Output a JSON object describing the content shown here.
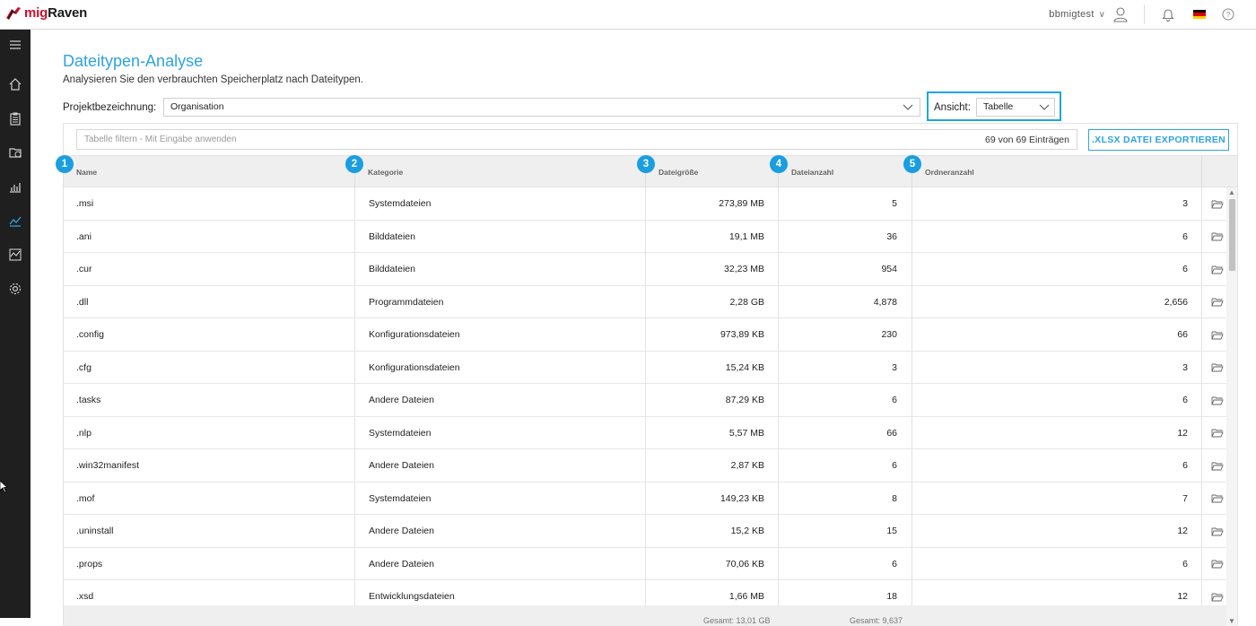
{
  "app": {
    "brand_prefix": "mig",
    "brand_suffix": "Raven"
  },
  "user": {
    "name": "bbmigtest",
    "caret": "∨"
  },
  "page": {
    "title": "Dateitypen-Analyse",
    "subtitle": "Analysieren Sie den verbrauchten Speicherplatz nach Dateitypen."
  },
  "project": {
    "label": "Projektbezeichnung:",
    "value": "Organisation"
  },
  "view": {
    "label": "Ansicht:",
    "value": "Tabelle"
  },
  "table": {
    "filter_placeholder": "Tabelle filtern - Mit Eingabe anwenden",
    "entries": "69 von 69 Einträgen",
    "export_label": ".XLSX DATEI EXPORTIEREN",
    "columns": [
      {
        "badge": "1",
        "label": "Name"
      },
      {
        "badge": "2",
        "label": "Kategorie"
      },
      {
        "badge": "3",
        "label": "Dateigröße"
      },
      {
        "badge": "4",
        "label": "Dateianzahl"
      },
      {
        "badge": "5",
        "label": "Ordneranzahl"
      }
    ],
    "rows": [
      {
        "name": ".msi",
        "kategorie": "Systemdateien",
        "size": "273,89 MB",
        "anzahl": "5",
        "ordner": "3"
      },
      {
        "name": ".ani",
        "kategorie": "Bilddateien",
        "size": "19,1 MB",
        "anzahl": "36",
        "ordner": "6"
      },
      {
        "name": ".cur",
        "kategorie": "Bilddateien",
        "size": "32,23 MB",
        "anzahl": "954",
        "ordner": "6"
      },
      {
        "name": ".dll",
        "kategorie": "Programmdateien",
        "size": "2,28  GB",
        "anzahl": "4,878",
        "ordner": "2,656"
      },
      {
        "name": ".config",
        "kategorie": "Konfigurationsdateien",
        "size": "973,89  KB",
        "anzahl": "230",
        "ordner": "66"
      },
      {
        "name": ".cfg",
        "kategorie": "Konfigurationsdateien",
        "size": "15,24  KB",
        "anzahl": "3",
        "ordner": "3"
      },
      {
        "name": ".tasks",
        "kategorie": "Andere Dateien",
        "size": "87,29  KB",
        "anzahl": "6",
        "ordner": "6"
      },
      {
        "name": ".nlp",
        "kategorie": "Systemdateien",
        "size": "5,57 MB",
        "anzahl": "66",
        "ordner": "12"
      },
      {
        "name": ".win32manifest",
        "kategorie": "Andere Dateien",
        "size": "2,87  KB",
        "anzahl": "6",
        "ordner": "6"
      },
      {
        "name": ".mof",
        "kategorie": "Systemdateien",
        "size": "149,23  KB",
        "anzahl": "8",
        "ordner": "7"
      },
      {
        "name": ".uninstall",
        "kategorie": "Andere Dateien",
        "size": "15,2  KB",
        "anzahl": "15",
        "ordner": "12"
      },
      {
        "name": ".props",
        "kategorie": "Andere Dateien",
        "size": "70,06  KB",
        "anzahl": "6",
        "ordner": "6"
      },
      {
        "name": ".xsd",
        "kategorie": "Entwicklungsdateien",
        "size": "1,66 MB",
        "anzahl": "18",
        "ordner": "12"
      }
    ],
    "footer": {
      "size_total": "Gesamt: 13,01 GB",
      "count_total": "Gesamt: 9,637"
    }
  },
  "colors": {
    "accent": "#2ea3e0",
    "badge": "#1a9ee0",
    "sidebar": "#1f1f1f",
    "brand_red": "#c8102e"
  },
  "icons": {
    "sidebar": [
      "menu-icon",
      "home-icon",
      "clipboard-icon",
      "folder-clock-icon",
      "bar-chart-icon",
      "trend-icon",
      "activity-chart-icon",
      "gear-icon"
    ],
    "top": [
      "raven-logo-icon",
      "user-icon",
      "bell-icon",
      "german-flag-icon",
      "help-icon"
    ]
  }
}
